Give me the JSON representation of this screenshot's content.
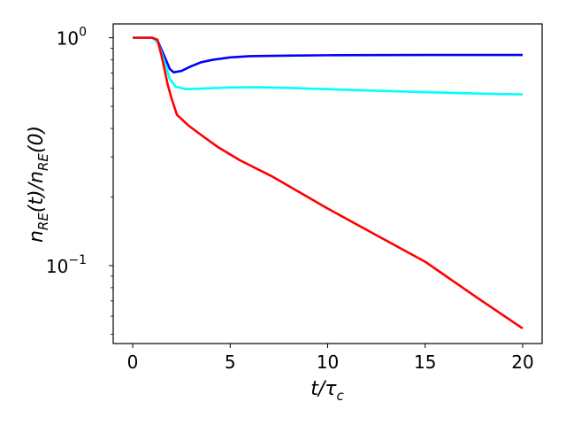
{
  "chart_data": {
    "type": "line",
    "title": "",
    "xlabel": "t/τ_c",
    "ylabel": "n_RE(t)/n_RE(0)",
    "xscale": "linear",
    "yscale": "log",
    "xlim": [
      -1,
      21
    ],
    "ylim": [
      0.0455,
      1.15
    ],
    "grid": false,
    "legend": null,
    "x_ticks": [
      0,
      5,
      10,
      15,
      20
    ],
    "x_tick_labels": [
      "0",
      "5",
      "10",
      "15",
      "20"
    ],
    "y_ticks": [
      1,
      0.1
    ],
    "y_tick_labels": [
      {
        "base": "10",
        "exp": "0"
      },
      {
        "base": "10",
        "exp": "−1"
      }
    ],
    "series": [
      {
        "name": "blue",
        "color": "#0000ff",
        "x": [
          0,
          1.0,
          1.3,
          1.6,
          1.9,
          2.1,
          2.5,
          3.0,
          3.5,
          4.1,
          5.0,
          6.0,
          8.0,
          10.0,
          15.0,
          20.0
        ],
        "y": [
          1.0,
          1.0,
          0.96,
          0.84,
          0.73,
          0.705,
          0.715,
          0.75,
          0.78,
          0.8,
          0.82,
          0.83,
          0.835,
          0.838,
          0.84,
          0.84
        ]
      },
      {
        "name": "cyan",
        "color": "#00ffff",
        "x": [
          0,
          1.0,
          1.3,
          1.6,
          1.9,
          2.2,
          2.7,
          3.5,
          5.0,
          6.5,
          8.0,
          10.0,
          12.0,
          15.0,
          18.0,
          20.0
        ],
        "y": [
          1.0,
          1.0,
          0.95,
          0.8,
          0.66,
          0.61,
          0.595,
          0.598,
          0.605,
          0.606,
          0.602,
          0.595,
          0.587,
          0.577,
          0.568,
          0.564
        ]
      },
      {
        "name": "red",
        "color": "#ff0000",
        "x": [
          0,
          1.0,
          1.27,
          1.5,
          1.8,
          2.0,
          2.27,
          2.86,
          3.5,
          4.4,
          5.5,
          7.12,
          10.0,
          12.5,
          15.0,
          17.5,
          20.0
        ],
        "y": [
          1.0,
          1.0,
          0.98,
          0.82,
          0.62,
          0.54,
          0.459,
          0.412,
          0.375,
          0.33,
          0.29,
          0.247,
          0.178,
          0.136,
          0.104,
          0.074,
          0.053
        ]
      }
    ]
  }
}
